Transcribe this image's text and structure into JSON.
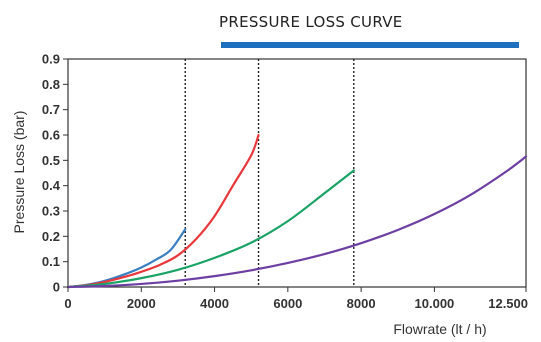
{
  "chart_data": {
    "type": "line",
    "title": "PRESSURE LOSS CURVE",
    "xlabel": "Flowrate (lt / h)",
    "ylabel": "Pressure Loss (bar)",
    "xlim": [
      0,
      12500
    ],
    "ylim": [
      0,
      0.9
    ],
    "x_ticks": [
      {
        "value": 0,
        "label": "0"
      },
      {
        "value": 2000,
        "label": "2000"
      },
      {
        "value": 4000,
        "label": "4000"
      },
      {
        "value": 6000,
        "label": "6000"
      },
      {
        "value": 8000,
        "label": "8000"
      },
      {
        "value": 10000,
        "label": "10.000"
      },
      {
        "value": 12500,
        "label": "12.500"
      }
    ],
    "y_ticks": [
      {
        "value": 0,
        "label": "0"
      },
      {
        "value": 0.1,
        "label": "0.1"
      },
      {
        "value": 0.2,
        "label": "0.2"
      },
      {
        "value": 0.3,
        "label": "0.3"
      },
      {
        "value": 0.4,
        "label": "0.4"
      },
      {
        "value": 0.5,
        "label": "0.5"
      },
      {
        "value": 0.6,
        "label": "0.6"
      },
      {
        "value": 0.7,
        "label": "0.7"
      },
      {
        "value": 0.8,
        "label": "0.8"
      },
      {
        "value": 0.9,
        "label": "0.9"
      }
    ],
    "grid": false,
    "reference_lines_x": [
      3200,
      5200,
      7800
    ],
    "title_bar_color": "#1f6fbf",
    "series": [
      {
        "color": "#3a7fc1",
        "points": [
          [
            0,
            0
          ],
          [
            400,
            0.006
          ],
          [
            800,
            0.017
          ],
          [
            1200,
            0.033
          ],
          [
            1600,
            0.053
          ],
          [
            2000,
            0.077
          ],
          [
            2400,
            0.108
          ],
          [
            2800,
            0.146
          ],
          [
            3200,
            0.228
          ]
        ]
      },
      {
        "color": "#e8383b",
        "points": [
          [
            0,
            0
          ],
          [
            500,
            0.007
          ],
          [
            1000,
            0.02
          ],
          [
            1500,
            0.038
          ],
          [
            2000,
            0.06
          ],
          [
            2500,
            0.087
          ],
          [
            3000,
            0.125
          ],
          [
            3500,
            0.19
          ],
          [
            4000,
            0.28
          ],
          [
            4500,
            0.4
          ],
          [
            5000,
            0.52
          ],
          [
            5200,
            0.6
          ]
        ]
      },
      {
        "color": "#1aa365",
        "points": [
          [
            0,
            0
          ],
          [
            1000,
            0.012
          ],
          [
            2000,
            0.035
          ],
          [
            3000,
            0.068
          ],
          [
            4000,
            0.115
          ],
          [
            5000,
            0.175
          ],
          [
            6000,
            0.26
          ],
          [
            7000,
            0.37
          ],
          [
            7800,
            0.46
          ]
        ]
      },
      {
        "color": "#6d3fa3",
        "points": [
          [
            0,
            0
          ],
          [
            1000,
            0.004
          ],
          [
            2000,
            0.012
          ],
          [
            3000,
            0.025
          ],
          [
            4000,
            0.043
          ],
          [
            5000,
            0.066
          ],
          [
            6000,
            0.095
          ],
          [
            7000,
            0.13
          ],
          [
            8000,
            0.173
          ],
          [
            9000,
            0.225
          ],
          [
            10000,
            0.288
          ],
          [
            11000,
            0.365
          ],
          [
            12000,
            0.46
          ],
          [
            12500,
            0.515
          ]
        ]
      }
    ]
  }
}
